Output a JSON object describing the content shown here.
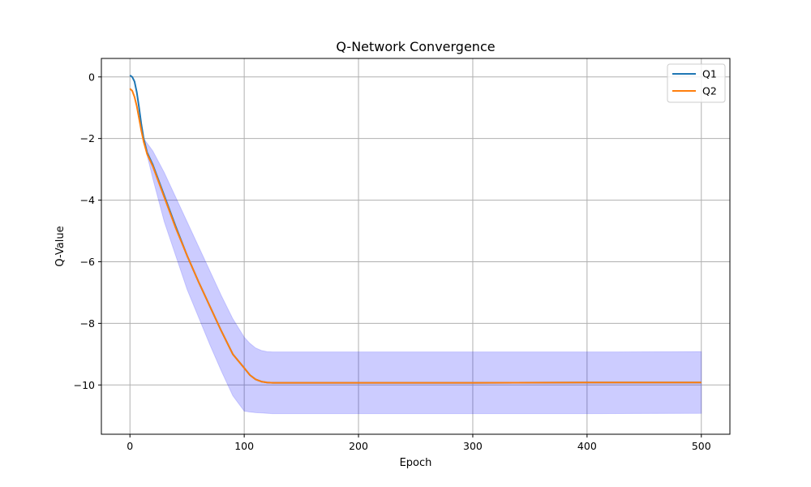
{
  "chart_data": {
    "type": "line",
    "title": "Q-Network Convergence",
    "xlabel": "Epoch",
    "ylabel": "Q-Value",
    "xlim": [
      -25,
      525
    ],
    "ylim": [
      -11.6,
      0.6
    ],
    "xticks": [
      0,
      100,
      200,
      300,
      400,
      500
    ],
    "xtick_labels": [
      "0",
      "100",
      "200",
      "300",
      "400",
      "500"
    ],
    "yticks": [
      0,
      -2,
      -4,
      -6,
      -8,
      -10
    ],
    "ytick_labels": [
      "0",
      "−2",
      "−4",
      "−6",
      "−8",
      "−10"
    ],
    "grid": true,
    "legend_position": "upper right",
    "series": [
      {
        "name": "Q1",
        "color": "#1f77b4",
        "x": [
          0,
          2,
          4,
          6,
          8,
          10,
          12,
          15,
          20,
          30,
          40,
          50,
          60,
          70,
          80,
          90,
          100,
          105,
          110,
          115,
          120,
          125,
          130,
          140,
          150,
          200,
          300,
          400,
          500
        ],
        "y": [
          0.05,
          0.0,
          -0.15,
          -0.5,
          -1.0,
          -1.55,
          -2.0,
          -2.45,
          -2.85,
          -3.85,
          -4.85,
          -5.8,
          -6.65,
          -7.45,
          -8.25,
          -9.0,
          -9.45,
          -9.68,
          -9.82,
          -9.89,
          -9.92,
          -9.93,
          -9.93,
          -9.93,
          -9.93,
          -9.93,
          -9.93,
          -9.92,
          -9.92
        ]
      },
      {
        "name": "Q2",
        "color": "#ff7f0e",
        "x": [
          0,
          2,
          4,
          6,
          8,
          10,
          12,
          15,
          20,
          30,
          40,
          50,
          60,
          70,
          80,
          90,
          100,
          105,
          110,
          115,
          120,
          125,
          130,
          140,
          150,
          200,
          300,
          400,
          500
        ],
        "y": [
          -0.38,
          -0.45,
          -0.65,
          -0.95,
          -1.35,
          -1.75,
          -2.1,
          -2.5,
          -2.9,
          -3.9,
          -4.9,
          -5.8,
          -6.65,
          -7.45,
          -8.25,
          -9.0,
          -9.45,
          -9.68,
          -9.82,
          -9.89,
          -9.92,
          -9.93,
          -9.93,
          -9.93,
          -9.93,
          -9.93,
          -9.93,
          -9.92,
          -9.92
        ]
      }
    ],
    "band": {
      "color": "#0000ff",
      "opacity": 0.2,
      "x": [
        12,
        20,
        30,
        40,
        50,
        60,
        70,
        80,
        90,
        100,
        105,
        110,
        115,
        120,
        125,
        130,
        140,
        150,
        200,
        300,
        400,
        500
      ],
      "upper": [
        -2.0,
        -2.4,
        -3.1,
        -3.9,
        -4.7,
        -5.5,
        -6.3,
        -7.1,
        -7.85,
        -8.45,
        -8.65,
        -8.8,
        -8.88,
        -8.92,
        -8.93,
        -8.93,
        -8.93,
        -8.93,
        -8.93,
        -8.93,
        -8.93,
        -8.92
      ],
      "lower": [
        -2.1,
        -3.3,
        -4.7,
        -5.8,
        -6.9,
        -7.8,
        -8.7,
        -9.55,
        -10.35,
        -10.85,
        -10.88,
        -10.9,
        -10.91,
        -10.92,
        -10.93,
        -10.93,
        -10.93,
        -10.93,
        -10.93,
        -10.93,
        -10.93,
        -10.92
      ]
    }
  }
}
